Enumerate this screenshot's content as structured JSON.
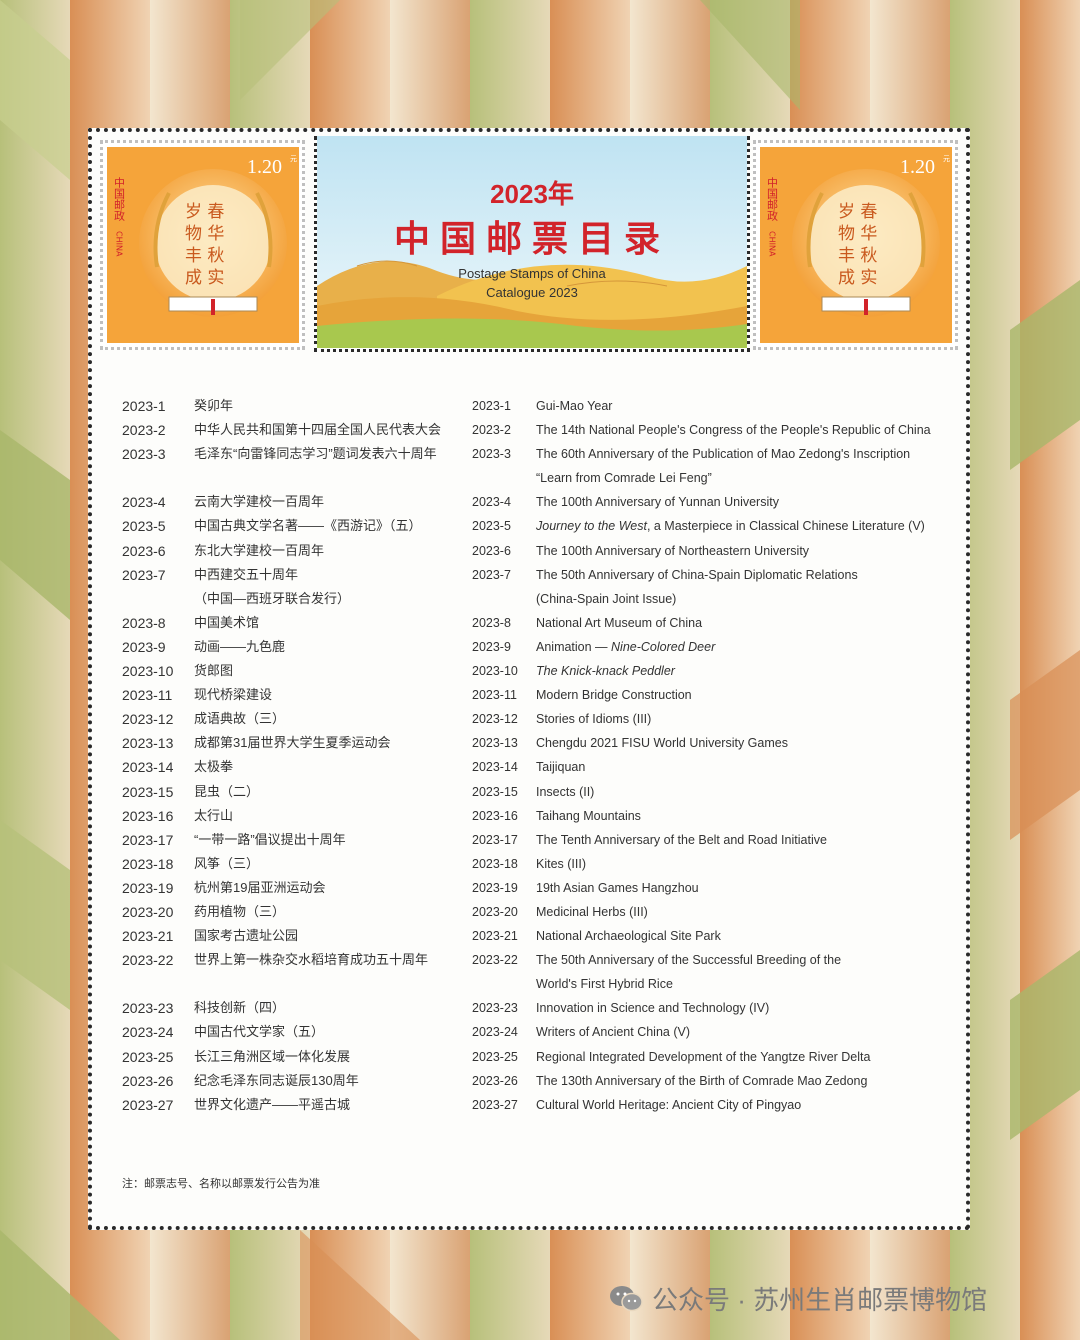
{
  "stamp": {
    "country_cn": "中国邮政",
    "country_en": "CHINA",
    "value": "1.20",
    "unit": "元",
    "text_lines": [
      "春华",
      "秋实",
      "岁物",
      "丰成"
    ]
  },
  "banner": {
    "year": "2023年",
    "title_cn": "中国邮票目录",
    "title_en_1": "Postage Stamps of China",
    "title_en_2": "Catalogue 2023"
  },
  "entries": [
    {
      "code": "2023-1",
      "cn": "癸卯年",
      "en": "Gui-Mao Year"
    },
    {
      "code": "2023-2",
      "cn": "中华人民共和国第十四届全国人民代表大会",
      "en": "The 14th National People's Congress of the People's Republic of China"
    },
    {
      "code": "2023-3",
      "cn": "毛泽东“向雷锋同志学习”题词发表六十周年",
      "en": "The 60th Anniversary of the Publication of Mao Zedong's Inscription"
    },
    {
      "code": "",
      "cn": "",
      "en": "“Learn from Comrade Lei Feng”"
    },
    {
      "code": "2023-4",
      "cn": "云南大学建校一百周年",
      "en": "The 100th Anniversary of Yunnan University"
    },
    {
      "code": "2023-5",
      "cn": "中国古典文学名著——《西游记》（五）",
      "en_italic": "Journey to the West",
      "en": ", a Masterpiece in Classical Chinese Literature (V)"
    },
    {
      "code": "2023-6",
      "cn": "东北大学建校一百周年",
      "en": "The 100th Anniversary of Northeastern University"
    },
    {
      "code": "2023-7",
      "cn": "中西建交五十周年",
      "en": "The 50th Anniversary of China-Spain Diplomatic Relations"
    },
    {
      "code": "",
      "cn": "（中国—西班牙联合发行）",
      "en": "(China-Spain Joint Issue)"
    },
    {
      "code": "2023-8",
      "cn": "中国美术馆",
      "en": "National Art Museum of China"
    },
    {
      "code": "2023-9",
      "cn": "动画——九色鹿",
      "en": "Animation — ",
      "en_italic_after": "Nine-Colored Deer"
    },
    {
      "code": "2023-10",
      "cn": "货郎图",
      "en_italic": "The Knick-knack Peddler",
      "en": ""
    },
    {
      "code": "2023-11",
      "cn": "现代桥梁建设",
      "en": "Modern Bridge Construction"
    },
    {
      "code": "2023-12",
      "cn": "成语典故（三）",
      "en": "Stories of Idioms (III)"
    },
    {
      "code": "2023-13",
      "cn": "成都第31届世界大学生夏季运动会",
      "en": "Chengdu 2021 FISU World University Games"
    },
    {
      "code": "2023-14",
      "cn": "太极拳",
      "en": "Taijiquan"
    },
    {
      "code": "2023-15",
      "cn": "昆虫（二）",
      "en": "Insects (II)"
    },
    {
      "code": "2023-16",
      "cn": "太行山",
      "en": "Taihang Mountains"
    },
    {
      "code": "2023-17",
      "cn": "“一带一路”倡议提出十周年",
      "en": "The Tenth Anniversary of the Belt and Road Initiative"
    },
    {
      "code": "2023-18",
      "cn": "风筝（三）",
      "en": "Kites (III)"
    },
    {
      "code": "2023-19",
      "cn": "杭州第19届亚洲运动会",
      "en": "19th Asian Games Hangzhou"
    },
    {
      "code": "2023-20",
      "cn": "药用植物（三）",
      "en": "Medicinal Herbs (III)"
    },
    {
      "code": "2023-21",
      "cn": "国家考古遗址公园",
      "en": "National Archaeological Site Park"
    },
    {
      "code": "2023-22",
      "cn": "世界上第一株杂交水稻培育成功五十周年",
      "en": "The 50th Anniversary of the Successful Breeding of the"
    },
    {
      "code": "",
      "cn": "",
      "en": "World's First Hybrid Rice"
    },
    {
      "code": "2023-23",
      "cn": "科技创新（四）",
      "en": "Innovation in Science and Technology (IV)"
    },
    {
      "code": "2023-24",
      "cn": "中国古代文学家（五）",
      "en": "Writers of Ancient China (V)"
    },
    {
      "code": "2023-25",
      "cn": "长江三角洲区域一体化发展",
      "en": "Regional Integrated Development of the Yangtze River Delta"
    },
    {
      "code": "2023-26",
      "cn": "纪念毛泽东同志诞辰130周年",
      "en": "The 130th Anniversary of the Birth of Comrade Mao Zedong"
    },
    {
      "code": "2023-27",
      "cn": "世界文化遗产——平遥古城",
      "en": "Cultural World Heritage: Ancient City of Pingyao"
    }
  ],
  "note": "注：邮票志号、名称以邮票发行公告为准",
  "watermark": "公众号 · 苏州生肖邮票博物馆",
  "colors": {
    "title_red": "#d2232a",
    "stamp_orange": "#f29a2e",
    "bg_green": "#a9b76a",
    "bg_orange": "#d99257"
  }
}
